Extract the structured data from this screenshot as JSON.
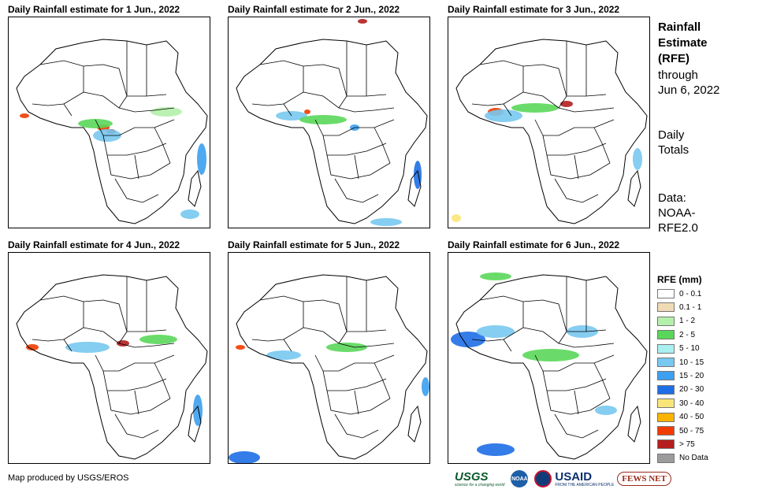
{
  "panels": [
    {
      "title": "Daily Rainfall estimate for 1 Jun., 2022"
    },
    {
      "title": "Daily Rainfall estimate for 2 Jun., 2022"
    },
    {
      "title": "Daily Rainfall estimate for 3 Jun., 2022"
    },
    {
      "title": "Daily Rainfall estimate for 4 Jun., 2022"
    },
    {
      "title": "Daily Rainfall estimate for 5 Jun., 2022"
    },
    {
      "title": "Daily Rainfall estimate for 6 Jun., 2022"
    }
  ],
  "sidebar": {
    "heading_line1": "Rainfall",
    "heading_line2": "Estimate",
    "heading_line3": "(RFE)",
    "through_line1": "through",
    "through_line2": "Jun 6, 2022",
    "totals_line1": "Daily",
    "totals_line2": "Totals",
    "data_line1": "Data:",
    "data_line2": "NOAA-",
    "data_line3": "RFE2.0"
  },
  "legend": {
    "title": "RFE (mm)",
    "items": [
      {
        "label": "0 - 0.1",
        "color": "#ffffff"
      },
      {
        "label": "0.1 - 1",
        "color": "#f0dcb4"
      },
      {
        "label": "1 - 2",
        "color": "#b4f0aa"
      },
      {
        "label": "2 - 5",
        "color": "#5ad75a"
      },
      {
        "label": "5 - 10",
        "color": "#aaf0f0"
      },
      {
        "label": "10 - 15",
        "color": "#78c8f0"
      },
      {
        "label": "15 - 20",
        "color": "#3ca0f0"
      },
      {
        "label": "20 - 30",
        "color": "#1e6ee6"
      },
      {
        "label": "30 - 40",
        "color": "#fae678"
      },
      {
        "label": "40 - 50",
        "color": "#fab400"
      },
      {
        "label": "50 - 75",
        "color": "#f03c00"
      },
      {
        "label": "> 75",
        "color": "#b41e1e"
      },
      {
        "label": "No Data",
        "color": "#9b9b9b"
      }
    ]
  },
  "footer": {
    "credit": "Map produced by USGS/EROS",
    "logo_usgs": "USGS",
    "logo_usgs_tagline": "science for a changing world",
    "logo_noaa": "NOAA",
    "logo_usaid": "USAID",
    "logo_usaid_tagline": "FROM THE AMERICAN PEOPLE",
    "logo_fews": "FEWS NET"
  }
}
